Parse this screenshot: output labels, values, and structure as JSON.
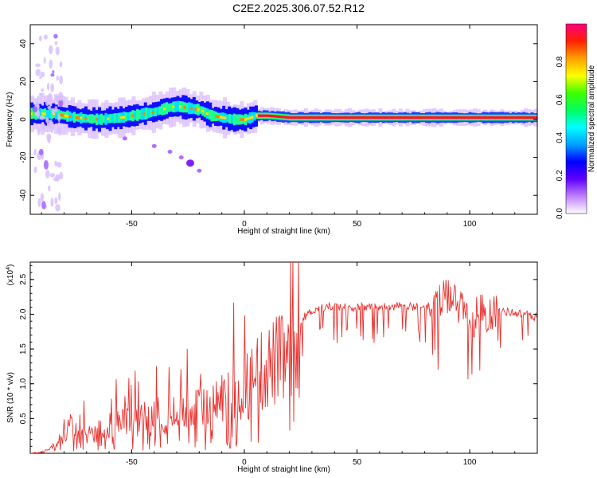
{
  "title": "C2E2.2025.306.07.52.R12",
  "chart_data": [
    {
      "type": "heatmap",
      "xlabel": "Height of straight line (km)",
      "ylabel": "Frequency (Hz)",
      "xlim": [
        -95,
        130
      ],
      "ylim": [
        -50,
        50
      ],
      "xticks": [
        -50,
        0,
        50,
        100
      ],
      "yticks": [
        -40,
        -20,
        0,
        20,
        40
      ],
      "colorbar": {
        "label": "Normalized spectral amplitude",
        "range": [
          0,
          1
        ],
        "ticks": [
          0.0,
          0.2,
          0.4,
          0.6,
          0.8
        ],
        "tick_labels": [
          "0.0",
          "0.2",
          "0.4",
          "0.6",
          "0.8"
        ],
        "colors": [
          "#ffffff",
          "#c080ff",
          "#6000ff",
          "#0000ff",
          "#00a0ff",
          "#00ffff",
          "#00ff60",
          "#40ff00",
          "#ffff00",
          "#ffa000",
          "#ff2000",
          "#ff0080"
        ]
      },
      "dominant_frequency_trace": {
        "x": [
          -95,
          -85,
          -75,
          -65,
          -55,
          -45,
          -40,
          -35,
          -30,
          -25,
          -20,
          -15,
          -10,
          -5,
          0,
          5,
          10,
          20,
          30,
          50,
          80,
          90,
          100,
          110,
          130
        ],
        "y": [
          3,
          3,
          1,
          0,
          1,
          3,
          4,
          6,
          7,
          6,
          5,
          2,
          1,
          0,
          0,
          2,
          2,
          1,
          1,
          1,
          1,
          1,
          1,
          1,
          1
        ]
      },
      "secondary_branch": {
        "x": [
          -53,
          -40,
          -33,
          -28,
          -24,
          -20
        ],
        "y": [
          -10,
          -14,
          -17,
          -20,
          -23,
          -27
        ]
      }
    },
    {
      "type": "line",
      "xlabel": "Height of straight line (km)",
      "ylabel": "SNR (10 * v/v)",
      "y_scale_label": "(x10",
      "y_scale_exp": "4",
      "y_scale_close": ")",
      "xlim": [
        -95,
        130
      ],
      "ylim": [
        0,
        2.75
      ],
      "xticks": [
        -50,
        0,
        50,
        100
      ],
      "yticks": [
        0.5,
        1.0,
        1.5,
        2.0,
        2.5
      ],
      "ytick_labels": [
        "0.5",
        "1.0",
        "1.5",
        "2.0",
        "2.5"
      ],
      "color": "#e8312e",
      "series": [
        {
          "name": "SNR",
          "x": [
            -95,
            -90,
            -85,
            -80,
            -78,
            -75,
            -70,
            -65,
            -60,
            -55,
            -50,
            -45,
            -40,
            -35,
            -30,
            -25,
            -20,
            -15,
            -12,
            -10,
            -5,
            0,
            5,
            10,
            15,
            20,
            25,
            30,
            35,
            40,
            50,
            60,
            70,
            80,
            85,
            90,
            93,
            95,
            100,
            105,
            110,
            115,
            120,
            125,
            130
          ],
          "y": [
            0.0,
            0.02,
            0.12,
            0.35,
            0.62,
            0.4,
            0.38,
            0.45,
            0.55,
            0.6,
            0.65,
            0.68,
            0.72,
            0.78,
            0.75,
            0.82,
            0.85,
            0.88,
            1.05,
            1.1,
            1.2,
            1.3,
            1.5,
            1.7,
            1.85,
            1.8,
            1.92,
            2.05,
            2.1,
            2.12,
            2.1,
            2.11,
            2.12,
            2.1,
            2.15,
            2.2,
            2.4,
            2.05,
            1.95,
            2.0,
            2.05,
            2.05,
            2.02,
            2.0,
            1.95
          ]
        }
      ]
    }
  ]
}
